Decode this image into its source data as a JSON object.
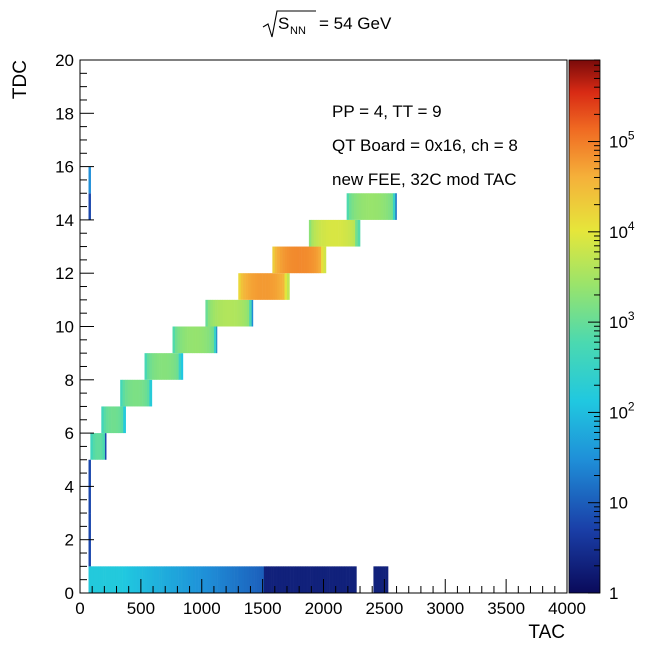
{
  "chart_data": {
    "type": "heatmap",
    "title_prefix": "S",
    "title_sub": "NN",
    "title_suffix": "= 54 GeV",
    "xlabel": "TAC",
    "ylabel": "TDC",
    "xlim": [
      0,
      4000
    ],
    "ylim": [
      0,
      20
    ],
    "zscale": "log",
    "zlim": [
      1,
      800000
    ],
    "x_ticks": [
      "0",
      "500",
      "1000",
      "1500",
      "2000",
      "2500",
      "3000",
      "3500",
      "4000"
    ],
    "y_ticks": [
      "0",
      "2",
      "4",
      "6",
      "8",
      "10",
      "12",
      "14",
      "16",
      "18",
      "20"
    ],
    "z_ticks": [
      {
        "base": "1",
        "exp": "",
        "value": 1
      },
      {
        "base": "10",
        "exp": "",
        "value": 10
      },
      {
        "base": "10",
        "exp": "2",
        "value": 100
      },
      {
        "base": "10",
        "exp": "3",
        "value": 1000
      },
      {
        "base": "10",
        "exp": "4",
        "value": 10000
      },
      {
        "base": "10",
        "exp": "5",
        "value": 100000
      }
    ],
    "annotations": [
      "PP = 4, TT = 9",
      "QT Board = 0x16, ch = 8",
      "new FEE, 32C mod TAC"
    ],
    "bands": [
      {
        "tdc": 5,
        "tac_min": 85,
        "tac_max": 215,
        "peak": 900
      },
      {
        "tdc": 6,
        "tac_min": 175,
        "tac_max": 375,
        "peak": 1200
      },
      {
        "tdc": 7,
        "tac_min": 330,
        "tac_max": 590,
        "peak": 1500
      },
      {
        "tdc": 8,
        "tac_min": 530,
        "tac_max": 845,
        "peak": 1800
      },
      {
        "tdc": 9,
        "tac_min": 760,
        "tac_max": 1125,
        "peak": 2400
      },
      {
        "tdc": 10,
        "tac_min": 1030,
        "tac_max": 1420,
        "peak": 4000
      },
      {
        "tdc": 11,
        "tac_min": 1300,
        "tac_max": 1720,
        "peak": 60000
      },
      {
        "tdc": 12,
        "tac_min": 1580,
        "tac_max": 2020,
        "peak": 80000
      },
      {
        "tdc": 13,
        "tac_min": 1880,
        "tac_max": 2300,
        "peak": 8000
      },
      {
        "tdc": 14,
        "tac_min": 2190,
        "tac_max": 2600,
        "peak": 2500
      }
    ],
    "low_tdc_row": {
      "tdc": 0,
      "tac_min": 70,
      "tac_max": 2530,
      "peak": 150
    },
    "left_column": {
      "tac": 70,
      "tdc_min": 1,
      "tdc_max": 16,
      "peak": 6
    }
  }
}
